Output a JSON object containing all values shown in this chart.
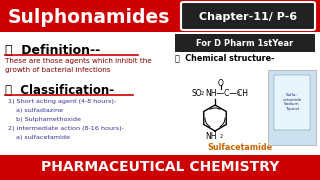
{
  "bg_color": "#ffffff",
  "header_bg": "#cc0000",
  "header_text": "Sulphonamides",
  "header_color": "#ffffff",
  "chapter_box_bg": "#222222",
  "chapter_text": "Chapter-11/ P-6",
  "chapter_color": "#ffffff",
  "dpharm_box_bg": "#222222",
  "dpharm_text": "For D Pharm 1stYear",
  "dpharm_color": "#ffffff",
  "definition_title": "👉  Definition--",
  "definition_text": "These are those agents which inhibit the\ngrowth of bacterial infections",
  "definition_text_color": "#8b0000",
  "classification_title": "👉  Classification-",
  "classification_items": [
    "1) Short acting agent (4-8 hours)-",
    "    a) sulfadiazine",
    "    b) Sulphamethoxide",
    "2) intermediate action (8-16 hours)-",
    "    a) sulfacetamide"
  ],
  "chem_title": "👉  Chemical structure-",
  "chem_label": "Sulfacetamide",
  "chem_label_color": "#cc6600",
  "footer_bg": "#cc0000",
  "footer_text": "PHARMACEUTICAL CHEMISTRY",
  "footer_color": "#ffffff",
  "title_underline_color": "#cc0000"
}
